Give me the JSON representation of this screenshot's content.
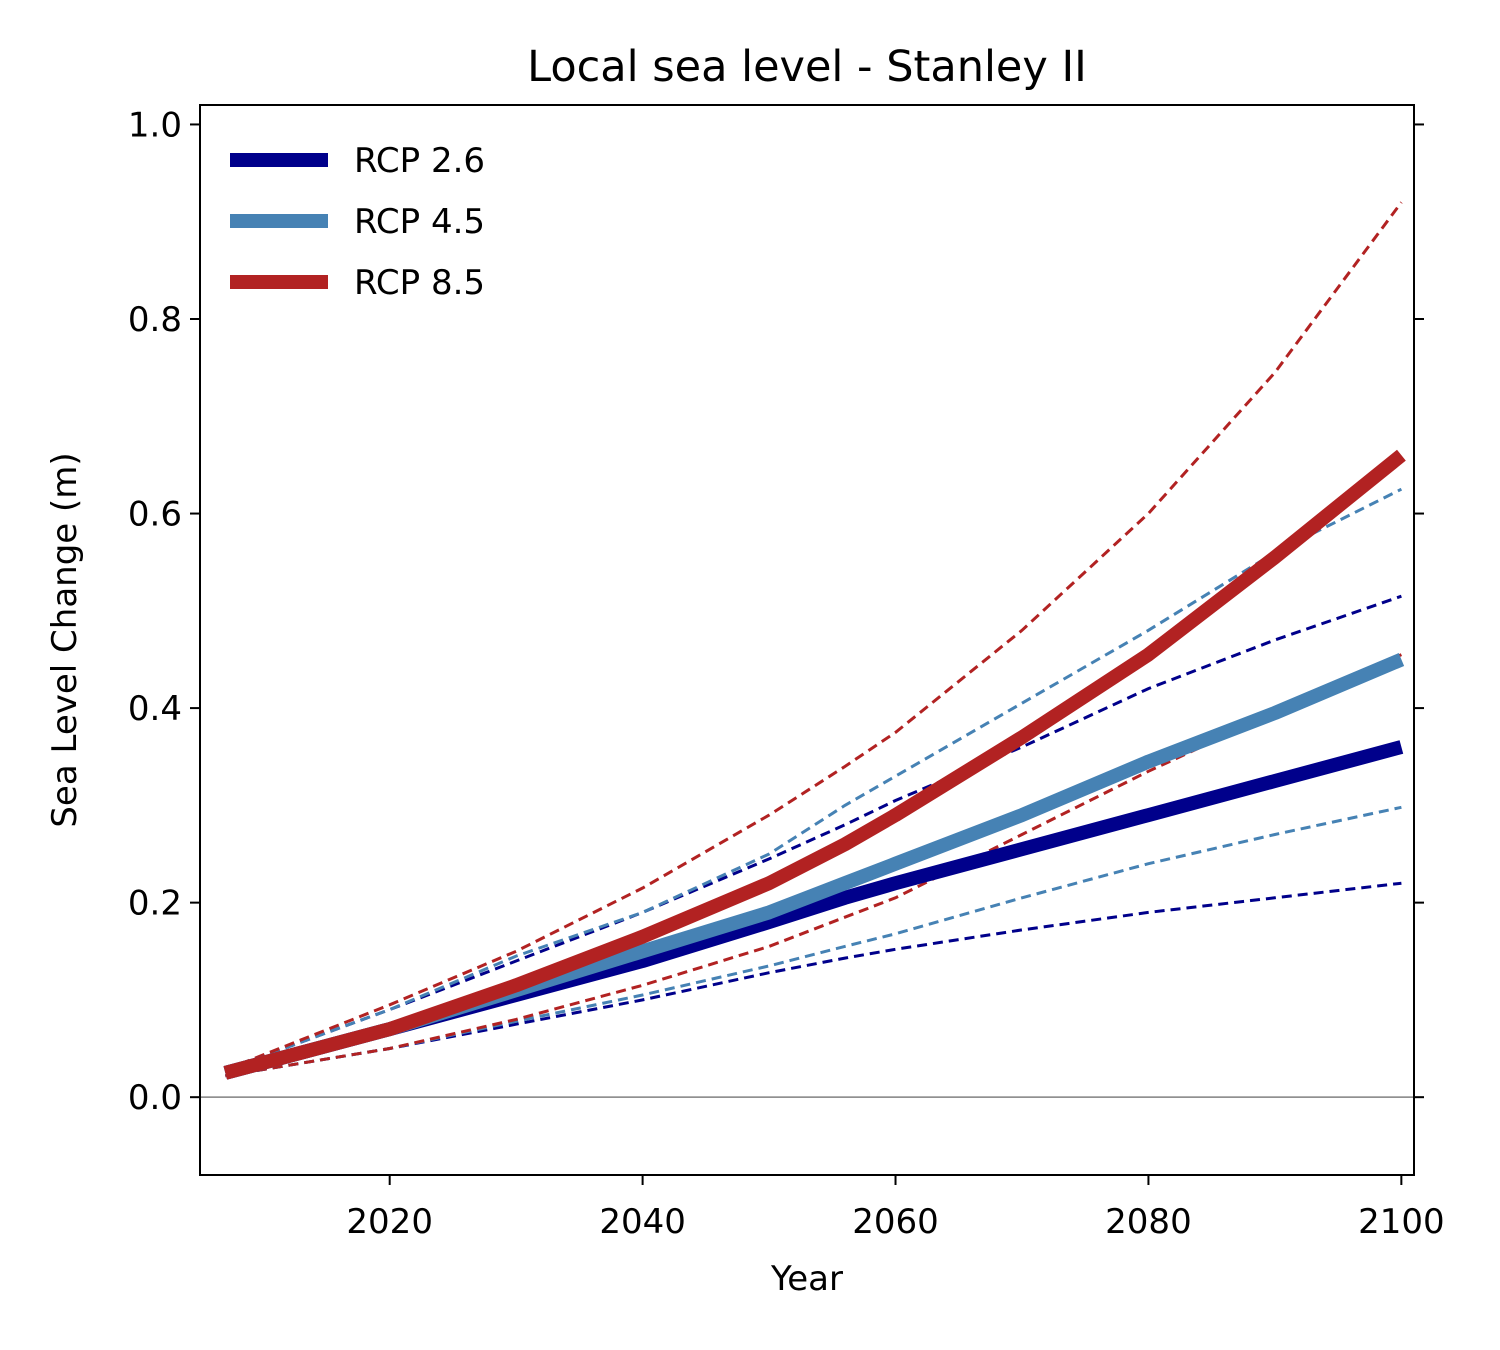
{
  "chart_data": {
    "type": "line",
    "title": "Local sea level - Stanley II",
    "xlabel": "Year",
    "ylabel": "Sea Level Change (m)",
    "xlim": [
      2005,
      2101
    ],
    "ylim": [
      -0.08,
      1.02
    ],
    "xticks": [
      2020,
      2040,
      2060,
      2080,
      2100
    ],
    "yticks": [
      0.0,
      0.2,
      0.4,
      0.6,
      0.8,
      1.0
    ],
    "ytick_labels": [
      "0.0",
      "0.2",
      "0.4",
      "0.6",
      "0.8",
      "1.0"
    ],
    "grid": false,
    "zero_line": true,
    "legend": {
      "position": "top-left"
    },
    "x": [
      2007,
      2020,
      2030,
      2040,
      2050,
      2056,
      2060,
      2070,
      2080,
      2090,
      2100
    ],
    "series": [
      {
        "name": "RCP 2.6",
        "color": "#00008B",
        "median": [
          0.025,
          0.07,
          0.105,
          0.14,
          0.18,
          0.205,
          0.22,
          0.255,
          0.29,
          0.325,
          0.36
        ],
        "lower": [
          0.022,
          0.05,
          0.075,
          0.1,
          0.128,
          0.143,
          0.152,
          0.172,
          0.19,
          0.205,
          0.22
        ],
        "upper": [
          0.028,
          0.09,
          0.14,
          0.19,
          0.245,
          0.28,
          0.305,
          0.36,
          0.42,
          0.47,
          0.515
        ]
      },
      {
        "name": "RCP 4.5",
        "color": "#4682B4",
        "median": [
          0.025,
          0.07,
          0.11,
          0.15,
          0.19,
          0.22,
          0.24,
          0.29,
          0.345,
          0.395,
          0.45
        ],
        "lower": [
          0.022,
          0.05,
          0.078,
          0.105,
          0.135,
          0.155,
          0.168,
          0.205,
          0.24,
          0.27,
          0.298
        ],
        "upper": [
          0.028,
          0.09,
          0.145,
          0.19,
          0.25,
          0.3,
          0.33,
          0.405,
          0.48,
          0.56,
          0.625
        ]
      },
      {
        "name": "RCP 8.5",
        "color": "#B22222",
        "median": [
          0.025,
          0.07,
          0.115,
          0.165,
          0.22,
          0.26,
          0.29,
          0.37,
          0.455,
          0.555,
          0.66
        ],
        "lower": [
          0.022,
          0.05,
          0.08,
          0.115,
          0.155,
          0.185,
          0.205,
          0.27,
          0.335,
          0.395,
          0.455
        ],
        "upper": [
          0.028,
          0.095,
          0.15,
          0.215,
          0.29,
          0.34,
          0.375,
          0.48,
          0.6,
          0.745,
          0.92
        ]
      }
    ]
  }
}
